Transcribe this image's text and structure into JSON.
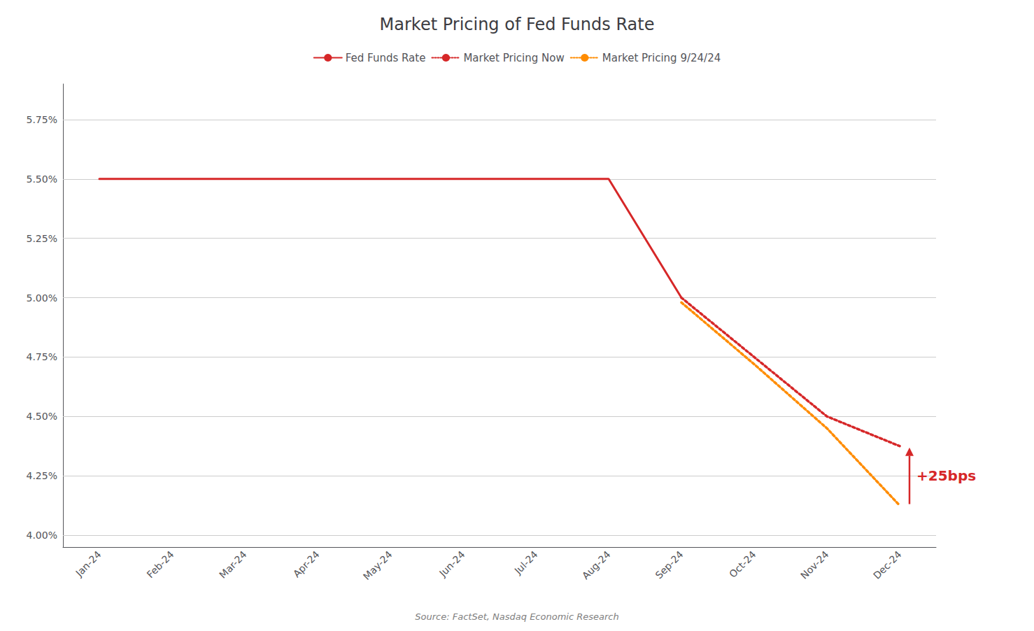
{
  "chart_data": {
    "type": "line",
    "title": "Market Pricing of Fed Funds Rate",
    "source": "Source: FactSet, Nasdaq Economic Research",
    "categories": [
      "Jan-24",
      "Feb-24",
      "Mar-24",
      "Apr-24",
      "May-24",
      "Jun-24",
      "Jul-24",
      "Aug-24",
      "Sep-24",
      "Oct-24",
      "Nov-24",
      "Dec-24"
    ],
    "series": [
      {
        "name": "Fed Funds Rate",
        "color": "#d62728",
        "line_style": "solid",
        "values": [
          5.5,
          5.5,
          5.5,
          5.5,
          5.5,
          5.5,
          5.5,
          5.5,
          5.0,
          null,
          null,
          null
        ]
      },
      {
        "name": "Market Pricing Now",
        "color": "#d62728",
        "line_style": "dotted",
        "values": [
          null,
          null,
          null,
          null,
          null,
          null,
          null,
          null,
          5.0,
          4.75,
          4.5,
          4.375
        ]
      },
      {
        "name": "Market Pricing 9/24/24",
        "color": "#ff8c00",
        "line_style": "dotted",
        "values": [
          null,
          null,
          null,
          null,
          null,
          null,
          null,
          null,
          4.98,
          4.72,
          4.45,
          4.125
        ]
      }
    ],
    "ylim": [
      3.95,
      5.9
    ],
    "yticks": [
      {
        "value": 4.0,
        "label": "4.00%"
      },
      {
        "value": 4.25,
        "label": "4.25%"
      },
      {
        "value": 4.5,
        "label": "4.50%"
      },
      {
        "value": 4.75,
        "label": "4.75%"
      },
      {
        "value": 5.0,
        "label": "5.00%"
      },
      {
        "value": 5.25,
        "label": "5.25%"
      },
      {
        "value": 5.5,
        "label": "5.50%"
      },
      {
        "value": 5.75,
        "label": "5.75%"
      }
    ],
    "grid": true,
    "legend": "upper center",
    "annotations": [
      {
        "text": "+25bps",
        "color": "#d62728",
        "x": "Dec-24",
        "y": [
          4.125,
          4.375
        ]
      }
    ]
  }
}
